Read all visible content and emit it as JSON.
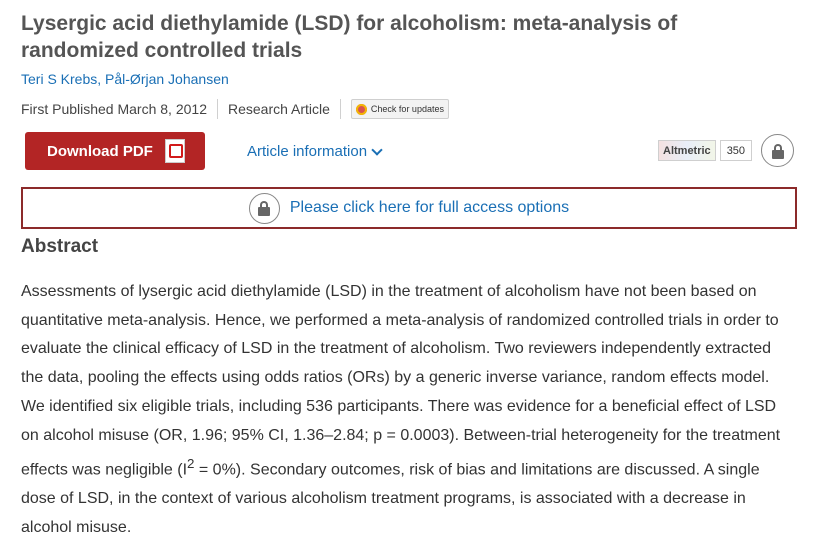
{
  "article": {
    "title": "Lysergic acid diethylamide (LSD) for alcoholism: meta-analysis of randomized controlled trials",
    "authors": [
      "Teri S Krebs",
      "Pål-Ørjan Johansen"
    ],
    "author_separator": ",",
    "published": "First Published March 8, 2012",
    "type": "Research Article",
    "check_updates_label": "Check for updates"
  },
  "actions": {
    "download_pdf_label": "Download PDF",
    "article_info_label": "Article information",
    "altmetric_label": "Altmetric",
    "altmetric_score": "350",
    "access_label": "Please click here for full access options"
  },
  "abstract": {
    "heading": "Abstract",
    "text_before_sup": "Assessments of lysergic acid diethylamide (LSD) in the treatment of alcoholism have not been based on quantitative meta-analysis. Hence, we performed a meta-analysis of randomized controlled trials in order to evaluate the clinical efficacy of LSD in the treatment of alcoholism. Two reviewers independently extracted the data, pooling the effects using odds ratios (ORs) by a generic inverse variance, random effects model. We identified six eligible trials, including 536 participants. There was evidence for a beneficial effect of LSD on alcohol misuse (OR, 1.96; 95% CI, 1.36–2.84; p = 0.0003). Between-trial heterogeneity for the treatment effects was negligible (I",
    "sup": "2",
    "text_after_sup": " = 0%). Secondary outcomes, risk of bias and limitations are discussed. A single dose of LSD, in the context of various alcoholism treatment programs, is associated with a decrease in alcohol misuse."
  },
  "colors": {
    "link": "#1a6fb5",
    "download_button": "#b32525",
    "access_border": "#8c2a2a"
  },
  "icons": [
    "pdf-icon",
    "chevron-down-icon",
    "lock-icon",
    "check-for-updates-icon"
  ]
}
